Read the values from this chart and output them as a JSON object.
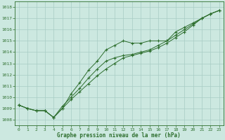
{
  "title": "Graphe pression niveau de la mer (hPa)",
  "bg_color": "#cce8e0",
  "line_color": "#2d6e2d",
  "grid_color": "#a8ccc4",
  "xlim_min": -0.5,
  "xlim_max": 23.5,
  "ylim_min": 1007.5,
  "ylim_max": 1018.5,
  "yticks": [
    1008,
    1009,
    1010,
    1011,
    1012,
    1013,
    1014,
    1015,
    1016,
    1017,
    1018
  ],
  "xticks": [
    0,
    1,
    2,
    3,
    4,
    5,
    6,
    7,
    8,
    9,
    10,
    11,
    12,
    13,
    14,
    15,
    16,
    17,
    18,
    19,
    20,
    21,
    22,
    23
  ],
  "series1_x": [
    0,
    1,
    2,
    3,
    4,
    5,
    6,
    7,
    8,
    9,
    10,
    11,
    12,
    13,
    14,
    15,
    16,
    17,
    18,
    19,
    20,
    21,
    22,
    23
  ],
  "series1_y": [
    1009.3,
    1009.0,
    1008.8,
    1008.8,
    1008.2,
    1009.0,
    1010.3,
    1011.3,
    1012.4,
    1013.2,
    1014.2,
    1014.6,
    1015.0,
    1014.8,
    1014.8,
    1015.0,
    1015.0,
    1015.0,
    1015.8,
    1016.2,
    1016.6,
    1017.0,
    1017.4,
    1017.7
  ],
  "series2_x": [
    0,
    1,
    2,
    3,
    4,
    5,
    6,
    7,
    8,
    9,
    10,
    11,
    12,
    13,
    14,
    15,
    16,
    17,
    18,
    19,
    20,
    21,
    22,
    23
  ],
  "series2_y": [
    1009.3,
    1009.0,
    1008.8,
    1008.8,
    1008.2,
    1009.2,
    1010.0,
    1010.8,
    1011.7,
    1012.5,
    1013.2,
    1013.5,
    1013.7,
    1013.8,
    1014.0,
    1014.2,
    1014.6,
    1015.0,
    1015.5,
    1016.0,
    1016.5,
    1017.0,
    1017.4,
    1017.7
  ],
  "series3_x": [
    0,
    1,
    2,
    3,
    4,
    5,
    6,
    7,
    8,
    9,
    10,
    11,
    12,
    13,
    14,
    15,
    16,
    17,
    18,
    19,
    20,
    21,
    22,
    23
  ],
  "series3_y": [
    1009.3,
    1009.0,
    1008.8,
    1008.8,
    1008.2,
    1009.0,
    1009.8,
    1010.5,
    1011.2,
    1011.9,
    1012.5,
    1013.0,
    1013.5,
    1013.7,
    1013.9,
    1014.1,
    1014.4,
    1014.8,
    1015.3,
    1015.8,
    1016.4,
    1017.0,
    1017.4,
    1017.7
  ]
}
